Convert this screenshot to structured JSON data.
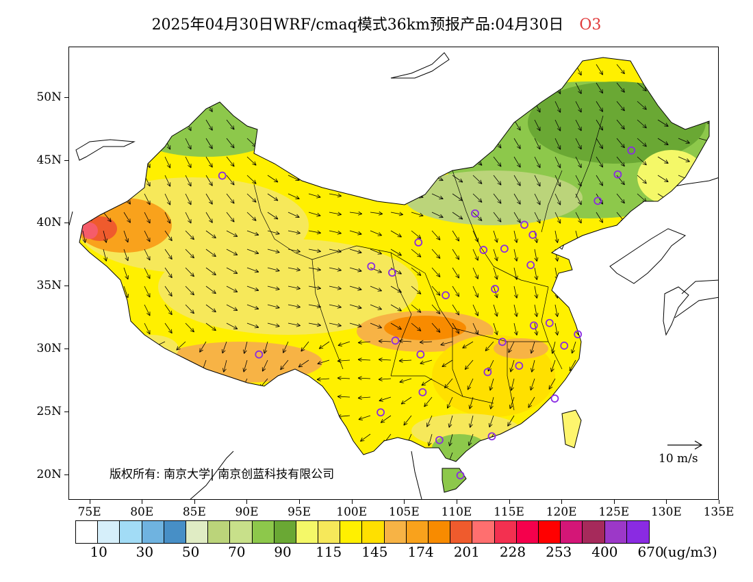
{
  "title": {
    "main": "2025年04月30日WRF/cmaq模式36km预报产品:04月30日",
    "species": "O3"
  },
  "axes": {
    "lat_labels": [
      "50N",
      "45N",
      "40N",
      "35N",
      "30N",
      "25N",
      "20N"
    ],
    "lon_labels": [
      "75E",
      "80E",
      "85E",
      "90E",
      "95E",
      "100E",
      "105E",
      "110E",
      "115E",
      "120E",
      "125E",
      "130E",
      "135E"
    ],
    "lon_range": [
      73,
      135
    ],
    "lat_range": [
      18,
      54
    ]
  },
  "copyright": "版权所有: 南京大学| 南京创蓝科技有限公司",
  "wind_scale_label": "10 m/s",
  "legend": {
    "colors": [
      "#ffffff",
      "#d6effa",
      "#a2dcf6",
      "#6fb3e0",
      "#478fc6",
      "#e0ecc4",
      "#bbd47a",
      "#c8e08a",
      "#8dc84b",
      "#6aa834",
      "#f4f868",
      "#f6e85a",
      "#fff000",
      "#ffe000",
      "#f7b345",
      "#f9a21c",
      "#f88b00",
      "#ef5b2d",
      "#ff6f6f",
      "#f33050",
      "#f5004c",
      "#ff0000",
      "#d41677",
      "#a62a5b",
      "#9c38c8",
      "#8a2be2"
    ],
    "labels": [
      "10",
      "30",
      "50",
      "70",
      "90",
      "115",
      "145",
      "174",
      "201",
      "228",
      "253",
      "400",
      "670"
    ],
    "unit": "(ug/m3)"
  },
  "stations": [
    [
      87.6,
      43.8
    ],
    [
      91.1,
      29.6
    ],
    [
      101.8,
      36.6
    ],
    [
      103.8,
      36.1
    ],
    [
      106.3,
      38.5
    ],
    [
      104.1,
      30.7
    ],
    [
      106.5,
      29.6
    ],
    [
      106.7,
      26.6
    ],
    [
      102.7,
      25.0
    ],
    [
      108.3,
      22.8
    ],
    [
      110.3,
      20.0
    ],
    [
      113.3,
      23.1
    ],
    [
      112.9,
      28.2
    ],
    [
      114.3,
      30.6
    ],
    [
      115.9,
      28.7
    ],
    [
      117.3,
      31.9
    ],
    [
      118.8,
      32.1
    ],
    [
      120.2,
      30.3
    ],
    [
      121.5,
      31.2
    ],
    [
      119.3,
      26.1
    ],
    [
      113.6,
      34.8
    ],
    [
      108.9,
      34.3
    ],
    [
      112.5,
      37.9
    ],
    [
      114.5,
      38.0
    ],
    [
      111.7,
      40.8
    ],
    [
      116.4,
      39.9
    ],
    [
      117.2,
      39.1
    ],
    [
      117.0,
      36.7
    ],
    [
      123.4,
      41.8
    ],
    [
      125.3,
      43.9
    ],
    [
      126.6,
      45.8
    ]
  ],
  "map_features": {
    "regions": "China provinces, O3 concentration field",
    "wind_vectors": "shown"
  }
}
